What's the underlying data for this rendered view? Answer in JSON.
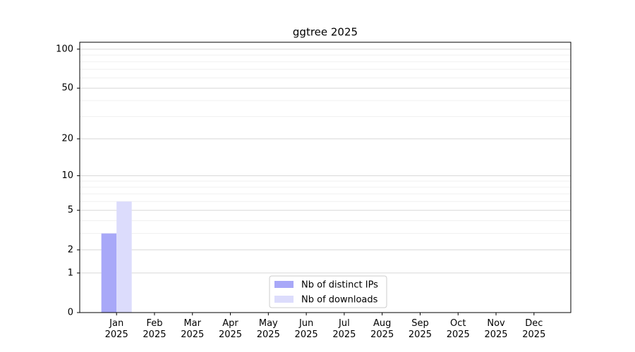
{
  "chart_data": {
    "type": "bar",
    "title": "ggtree 2025",
    "categories": [
      "Jan\n2025",
      "Feb\n2025",
      "Mar\n2025",
      "Apr\n2025",
      "May\n2025",
      "Jun\n2025",
      "Jul\n2025",
      "Aug\n2025",
      "Sep\n2025",
      "Oct\n2025",
      "Nov\n2025",
      "Dec\n2025"
    ],
    "series": [
      {
        "name": "Nb of distinct IPs",
        "color": "#a8a8f8",
        "values": [
          3,
          0,
          0,
          0,
          0,
          0,
          0,
          0,
          0,
          0,
          0,
          0
        ]
      },
      {
        "name": "Nb of downloads",
        "color": "#dcdcfc",
        "values": [
          6,
          0,
          0,
          0,
          0,
          0,
          0,
          0,
          0,
          0,
          0,
          0
        ]
      }
    ],
    "yscale": "log1p",
    "ylim": [
      0,
      113
    ],
    "yticks": [
      0,
      1,
      2,
      5,
      10,
      20,
      50,
      100
    ],
    "yminor": [
      3,
      4,
      6,
      7,
      8,
      9,
      30,
      40,
      60,
      70,
      80,
      90
    ],
    "grid": true,
    "legend": "lower center"
  }
}
